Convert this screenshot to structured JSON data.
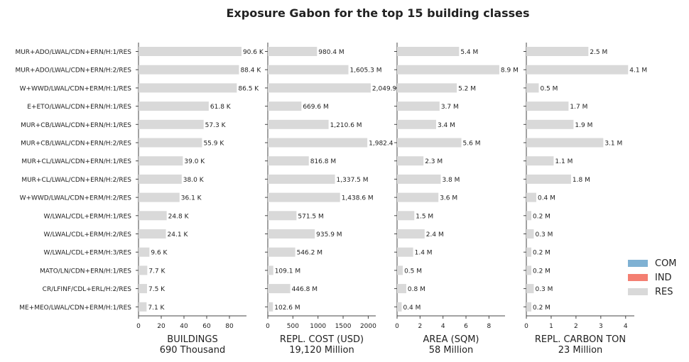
{
  "chart_data": {
    "type": "bar",
    "title": "Exposure Gabon for the top 15 building classes",
    "categories": [
      "MUR+ADO/LWAL/CDN+ERN/H:1/RES",
      "MUR+ADO/LWAL/CDN+ERN/H:2/RES",
      "W+WWD/LWAL/CDN+ERM/H:1/RES",
      "E+ETO/LWAL/CDN+ERN/H:1/RES",
      "MUR+CB/LWAL/CDN+ERN/H:1/RES",
      "MUR+CB/LWAL/CDN+ERN/H:2/RES",
      "MUR+CL/LWAL/CDN+ERN/H:1/RES",
      "MUR+CL/LWAL/CDN+ERN/H:2/RES",
      "W+WWD/LWAL/CDN+ERM/H:2/RES",
      "W/LWAL/CDL+ERM/H:1/RES",
      "W/LWAL/CDL+ERM/H:2/RES",
      "W/LWAL/CDL+ERM/H:3/RES",
      "MATO/LN/CDN+ERN/H:1/RES",
      "CR/LFINF/CDL+ERL/H:2/RES",
      "ME+MEO/LWAL/CDN+ERM/H:1/RES"
    ],
    "legend": {
      "placement": "right",
      "entries": [
        {
          "name": "COM",
          "color": "#7fb1d3"
        },
        {
          "name": "IND",
          "color": "#f47f72"
        },
        {
          "name": "RES",
          "color": "#d9d9d9"
        }
      ]
    },
    "panels": [
      {
        "xlabel": "BUILDINGS",
        "total": "690 Thousand",
        "xlim": [
          0,
          95
        ],
        "ticks": [
          0,
          20,
          40,
          60,
          80
        ],
        "tick_labels": [
          "0",
          "20",
          "40",
          "60",
          "80"
        ],
        "values": [
          90.6,
          88.4,
          86.5,
          61.8,
          57.3,
          55.9,
          39.0,
          38.0,
          36.1,
          24.8,
          24.1,
          9.6,
          7.7,
          7.5,
          7.1
        ],
        "labels": [
          "90.6 K",
          "88.4 K",
          "86.5 K",
          "61.8 K",
          "57.3 K",
          "55.9 K",
          "39.0 K",
          "38.0 K",
          "36.1 K",
          "24.8 K",
          "24.1 K",
          "9.6 K",
          "7.7 K",
          "7.5 K",
          "7.1 K"
        ]
      },
      {
        "xlabel": "REPL. COST (USD)",
        "total": "19,120 Million",
        "xlim": [
          0,
          2150
        ],
        "ticks": [
          0,
          500,
          1000,
          1500,
          2000
        ],
        "tick_labels": [
          "0",
          "500",
          "1000",
          "1500",
          "2000"
        ],
        "values": [
          980.4,
          1605.3,
          2049.9,
          669.6,
          1210.6,
          1982.4,
          816.8,
          1337.5,
          1438.6,
          571.5,
          935.9,
          546.2,
          109.1,
          446.8,
          102.6
        ],
        "labels": [
          "980.4 M",
          "1,605.3 M",
          "2,049.9",
          "669.6 M",
          "1,210.6 M",
          "1,982.4",
          "816.8 M",
          "1,337.5 M",
          "1,438.6 M",
          "571.5 M",
          "935.9 M",
          "546.2 M",
          "109.1 M",
          "446.8 M",
          "102.6 M"
        ]
      },
      {
        "xlabel": "AREA (SQM)",
        "total": "58 Million",
        "xlim": [
          0,
          9.4
        ],
        "ticks": [
          0,
          2,
          4,
          6,
          8
        ],
        "tick_labels": [
          "0",
          "2",
          "4",
          "6",
          "8"
        ],
        "values": [
          5.4,
          8.9,
          5.2,
          3.7,
          3.4,
          5.6,
          2.3,
          3.8,
          3.6,
          1.5,
          2.4,
          1.4,
          0.5,
          0.8,
          0.4
        ],
        "labels": [
          "5.4 M",
          "8.9 M",
          "5.2 M",
          "3.7 M",
          "3.4 M",
          "5.6 M",
          "2.3 M",
          "3.8 M",
          "3.6 M",
          "1.5 M",
          "2.4 M",
          "1.4 M",
          "0.5 M",
          "0.8 M",
          "0.4 M"
        ]
      },
      {
        "xlabel": "REPL. CARBON TON",
        "total": "23 Million",
        "xlim": [
          0,
          4.35
        ],
        "ticks": [
          0,
          1,
          2,
          3,
          4
        ],
        "tick_labels": [
          "0",
          "1",
          "2",
          "3",
          "4"
        ],
        "values": [
          2.5,
          4.1,
          0.5,
          1.7,
          1.9,
          3.1,
          1.1,
          1.8,
          0.4,
          0.2,
          0.3,
          0.2,
          0.2,
          0.3,
          0.2
        ],
        "labels": [
          "2.5 M",
          "4.1 M",
          "0.5 M",
          "1.7 M",
          "1.9 M",
          "3.1 M",
          "1.1 M",
          "1.8 M",
          "0.4 M",
          "0.2 M",
          "0.3 M",
          "0.2 M",
          "0.2 M",
          "0.3 M",
          "0.2 M"
        ]
      }
    ]
  }
}
